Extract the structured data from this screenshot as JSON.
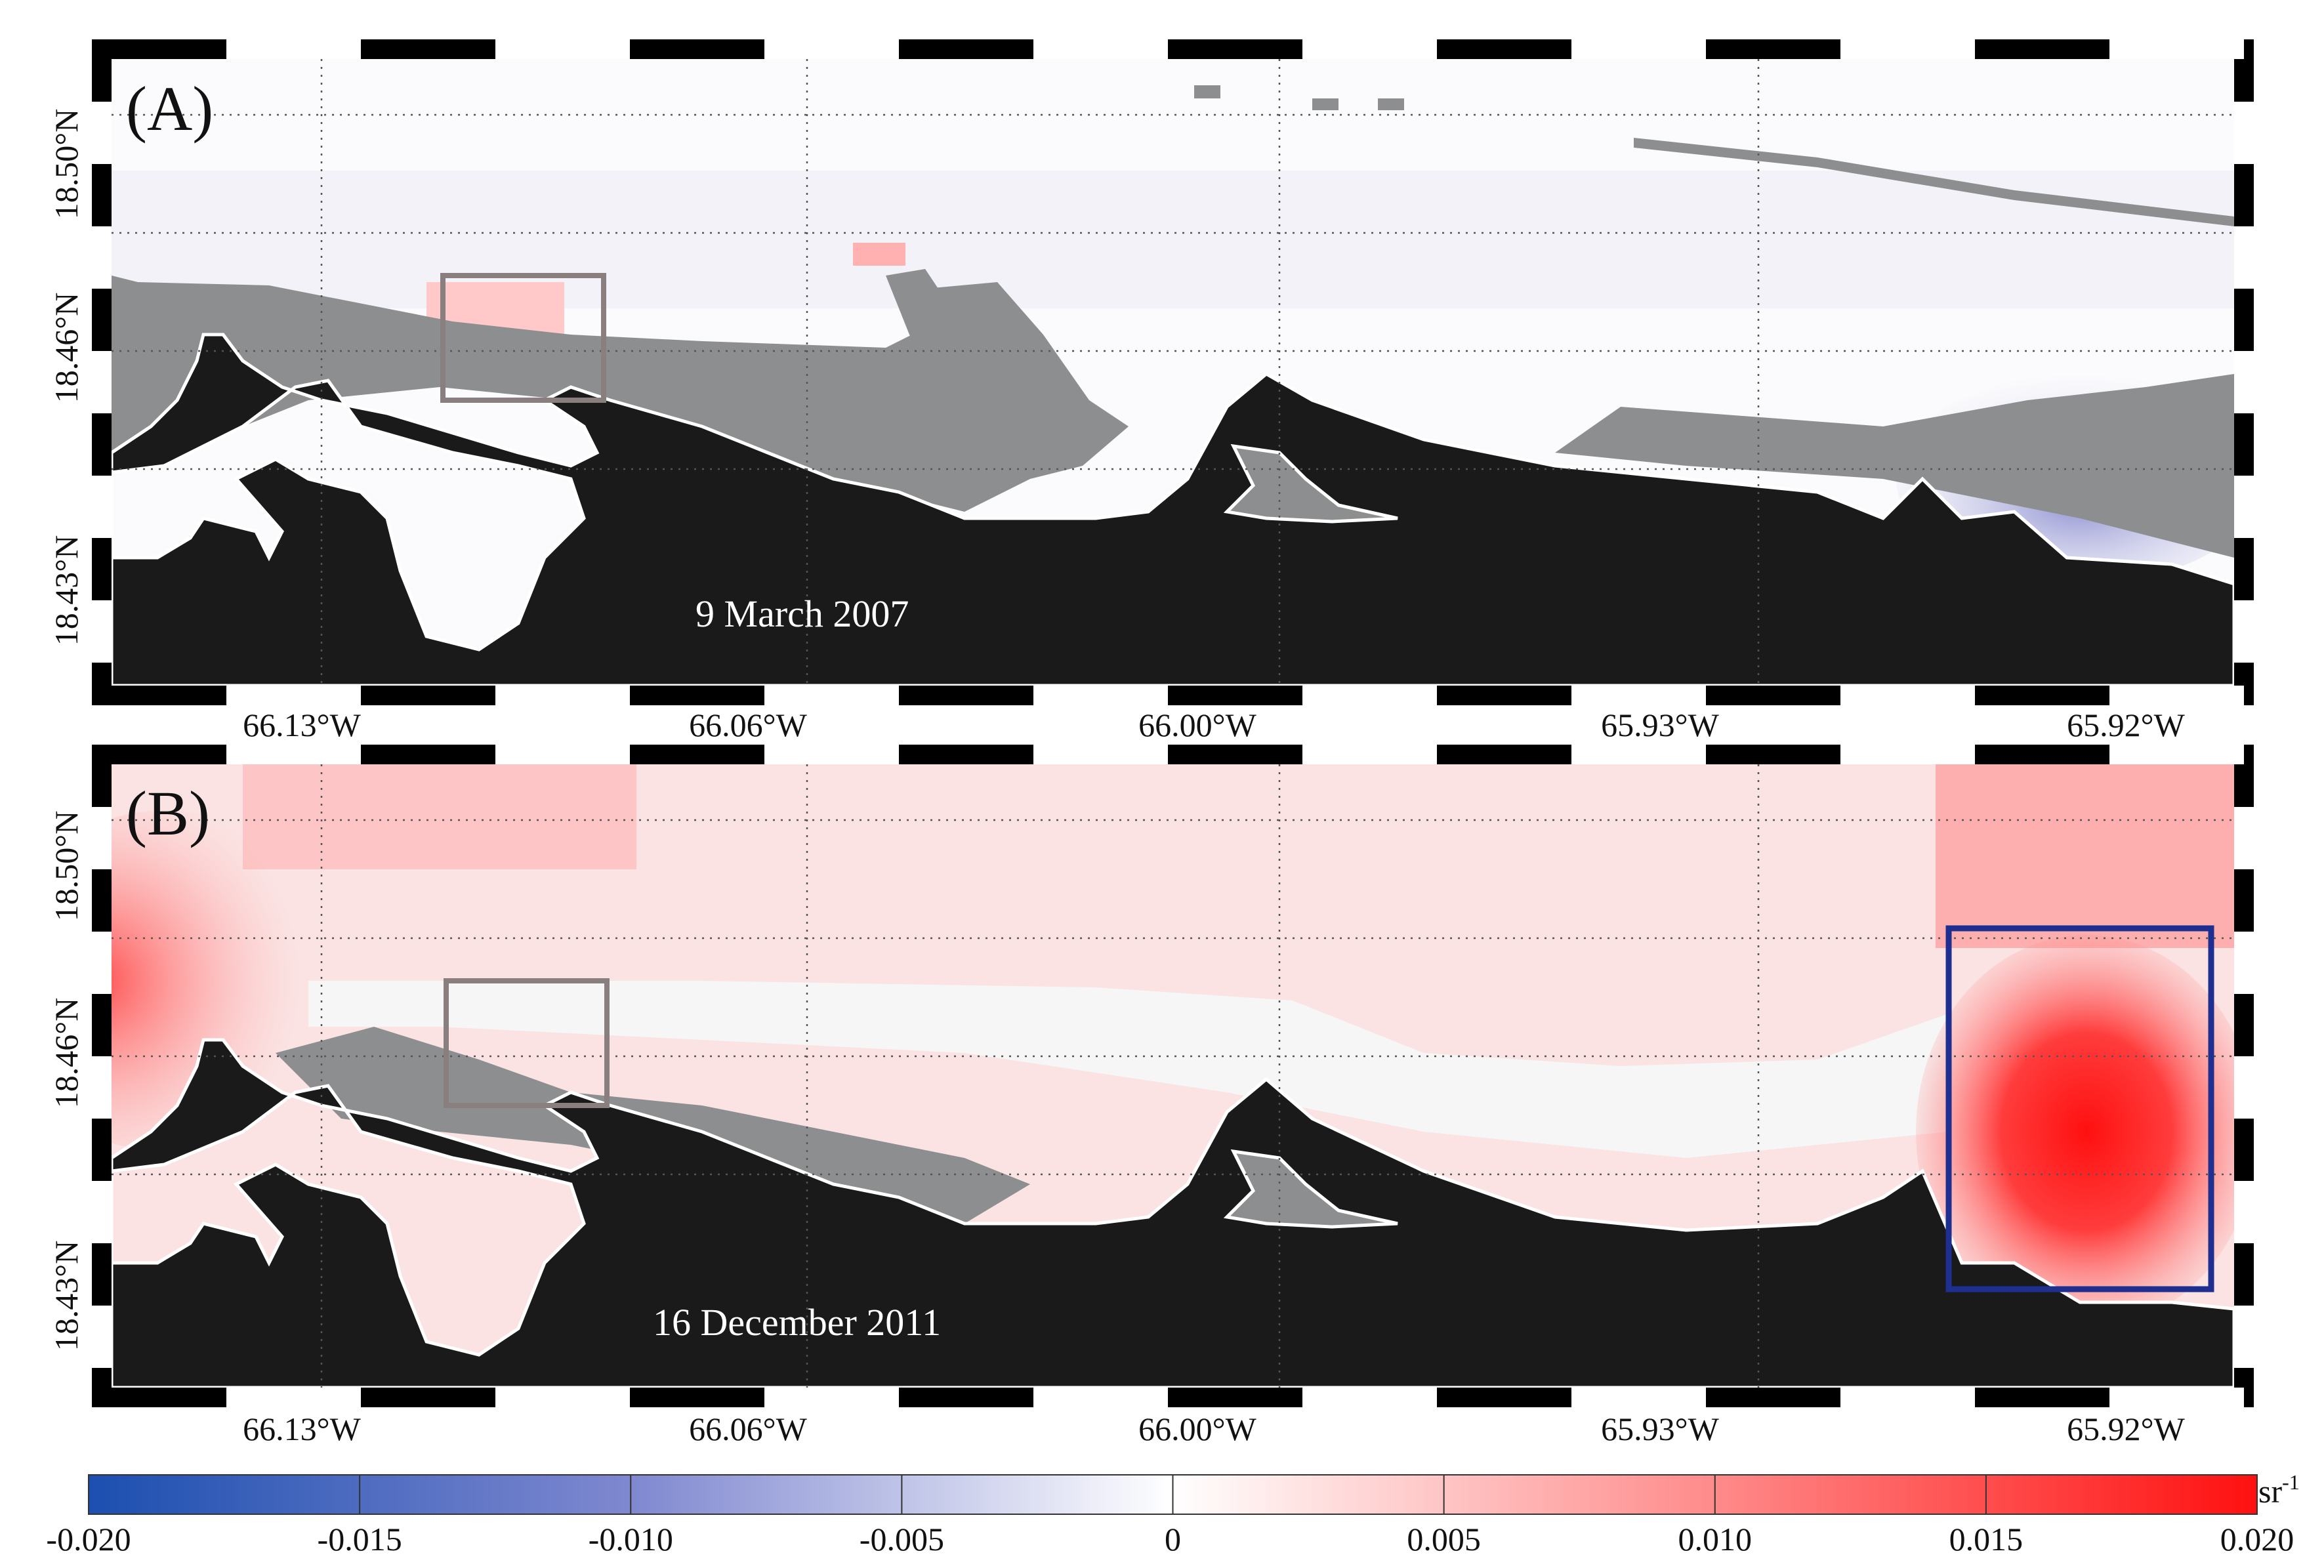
{
  "panels": [
    {
      "id": "A",
      "label": "(A)",
      "date": "9 March 2007",
      "lat_ticks": [
        "18.50°N",
        "18.46°N",
        "18.43°N"
      ],
      "lon_ticks": [
        "66.13°W",
        "66.06°W",
        "66.00°W",
        "65.93°W",
        "65.92°W"
      ],
      "dominant_anomaly": "near zero, slight red near box, slight blue in east",
      "boxes": [
        {
          "color": "#8a7f7f",
          "role": "inset"
        }
      ]
    },
    {
      "id": "B",
      "label": "(B)",
      "date": "16 December 2011",
      "lat_ticks": [
        "18.50°N",
        "18.46°N",
        "18.43°N"
      ],
      "lon_ticks": [
        "66.13°W",
        "66.06°W",
        "66.00°W",
        "65.93°W",
        "65.92°W"
      ],
      "dominant_anomaly": "positive (red) across basin, strongest in eastern box",
      "boxes": [
        {
          "color": "#8a7f7f",
          "role": "inset"
        },
        {
          "color": "#1f2f8f",
          "role": "highlight"
        }
      ]
    }
  ],
  "colorbar": {
    "unit": "sr",
    "unit_exp": "-1",
    "min": -0.02,
    "max": 0.02,
    "tick_labels": [
      "-0.020",
      "-0.015",
      "-0.010",
      "-0.005",
      "0",
      "0.005",
      "0.010",
      "0.015",
      "0.020"
    ],
    "low_color": "#1c4fb0",
    "mid_color": "#ffffff",
    "high_color": "#ff1010"
  },
  "colors": {
    "land": "#1a1a1a",
    "masked": "#8c8e8f",
    "coast_line": "#ffffff",
    "frame_black": "#000000",
    "frame_white": "#ffffff"
  }
}
